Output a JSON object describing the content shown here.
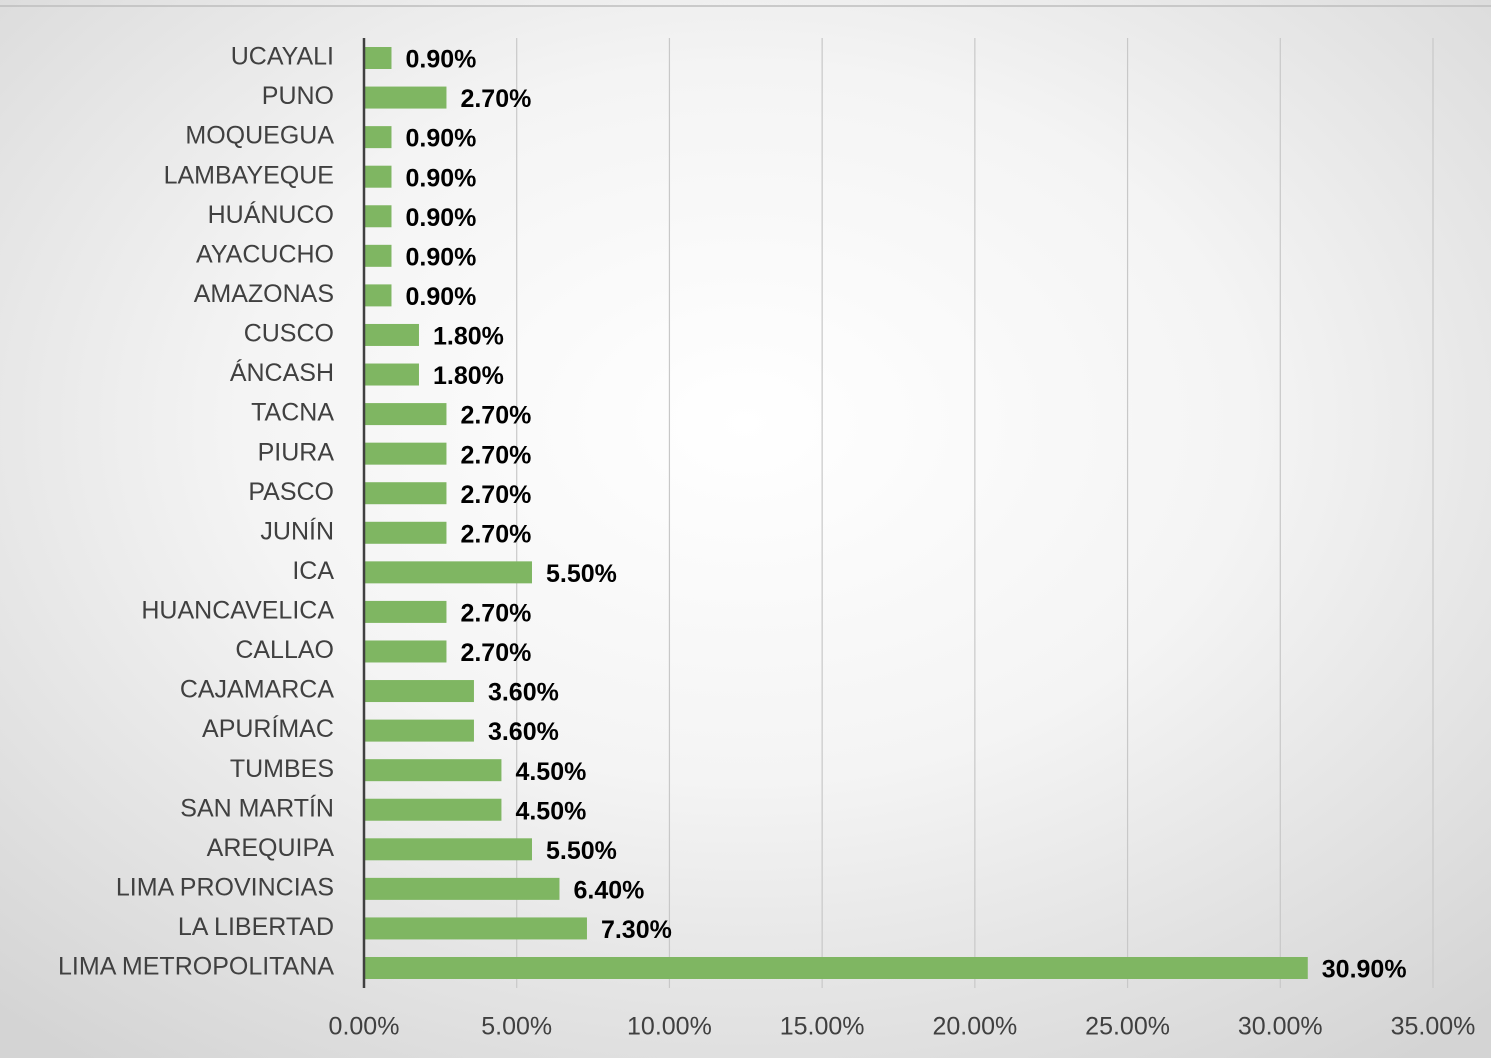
{
  "chart_data": {
    "type": "hbar",
    "categories": [
      "UCAYALI",
      "PUNO",
      "MOQUEGUA",
      "LAMBAYEQUE",
      "HUÁNUCO",
      "AYACUCHO",
      "AMAZONAS",
      "CUSCO",
      "ÁNCASH",
      "TACNA",
      "PIURA",
      "PASCO",
      "JUNÍN",
      "ICA",
      "HUANCAVELICA",
      "CALLAO",
      "CAJAMARCA",
      "APURÍMAC",
      "TUMBES",
      "SAN MARTÍN",
      "AREQUIPA",
      "LIMA PROVINCIAS",
      "LA LIBERTAD",
      "LIMA METROPOLITANA"
    ],
    "values": [
      0.9,
      2.7,
      0.9,
      0.9,
      0.9,
      0.9,
      0.9,
      1.8,
      1.8,
      2.7,
      2.7,
      2.7,
      2.7,
      5.5,
      2.7,
      2.7,
      3.6,
      3.6,
      4.5,
      4.5,
      5.5,
      6.4,
      7.3,
      30.9
    ],
    "value_labels": [
      "0.90%",
      "2.70%",
      "0.90%",
      "0.90%",
      "0.90%",
      "0.90%",
      "0.90%",
      "1.80%",
      "1.80%",
      "2.70%",
      "2.70%",
      "2.70%",
      "2.70%",
      "5.50%",
      "2.70%",
      "2.70%",
      "3.60%",
      "3.60%",
      "4.50%",
      "4.50%",
      "5.50%",
      "6.40%",
      "7.30%",
      "30.90%"
    ],
    "color": "#7fb662",
    "xlim": [
      0,
      35
    ],
    "xticks": [
      {
        "value": 0,
        "label": "0.00%"
      },
      {
        "value": 5,
        "label": "5.00%"
      },
      {
        "value": 10,
        "label": "10.00%"
      },
      {
        "value": 15,
        "label": "15.00%"
      },
      {
        "value": 20,
        "label": "20.00%"
      },
      {
        "value": 25,
        "label": "25.00%"
      },
      {
        "value": 30,
        "label": "30.00%"
      },
      {
        "value": 35,
        "label": "35.00%"
      }
    ],
    "grid": true
  }
}
